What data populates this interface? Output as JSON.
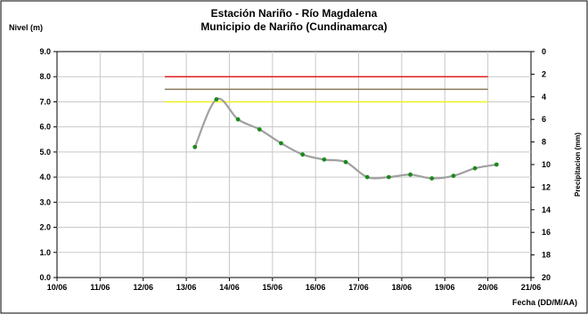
{
  "chart_data": {
    "type": "line",
    "title": "Estación Nariño  - Río Magdalena",
    "subtitle": "Municipio de Nariño (Cundinamarca)",
    "ylabel": "Nivel (m)",
    "y2label": "Precipitacion (mm)",
    "xlabel": "Fecha (DD/M/AA)",
    "ylim": [
      0,
      9
    ],
    "y2lim": [
      0,
      20
    ],
    "y2_inverted": true,
    "x_ticks": [
      "10/06",
      "11/06",
      "12/06",
      "13/06",
      "14/06",
      "15/06",
      "16/06",
      "17/06",
      "18/06",
      "19/06",
      "20/06",
      "21/06"
    ],
    "y_ticks": [
      "0.0",
      "1.0",
      "2.0",
      "3.0",
      "4.0",
      "5.0",
      "6.0",
      "7.0",
      "8.0",
      "9.0"
    ],
    "y2_ticks": [
      "0",
      "2",
      "4",
      "6",
      "8",
      "10",
      "12",
      "14",
      "16",
      "18",
      "20"
    ],
    "grid": true,
    "thresholds": [
      {
        "value": 8.0,
        "color": "#e02020",
        "x_range": [
          2.5,
          10.0
        ]
      },
      {
        "value": 7.5,
        "color": "#8a7a5a",
        "x_range": [
          2.5,
          10.0
        ]
      },
      {
        "value": 7.0,
        "color": "#f0f020",
        "x_range": [
          2.5,
          10.0
        ]
      }
    ],
    "series": [
      {
        "line_color": "#a0a0a0",
        "marker_color": "#1a8a1a",
        "x": [
          3.2,
          3.7,
          4.2,
          4.7,
          5.2,
          5.7,
          6.2,
          6.7,
          7.2,
          7.7,
          8.2,
          8.7,
          9.2,
          9.7,
          10.2
        ],
        "values": [
          5.2,
          7.1,
          6.3,
          5.9,
          5.35,
          4.9,
          4.7,
          4.6,
          4.0,
          4.0,
          4.1,
          3.95,
          4.05,
          4.35,
          4.5
        ]
      }
    ]
  }
}
